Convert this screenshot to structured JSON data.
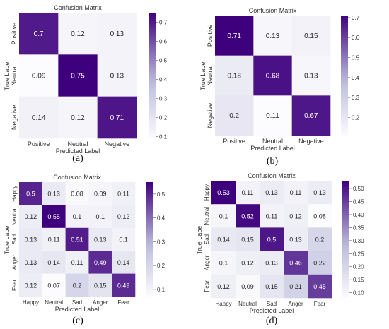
{
  "colors": {
    "low": "#fcfbfd",
    "mid": "#bcbddc",
    "high": "#3f007d"
  },
  "chart_data": [
    {
      "type": "heatmap",
      "title": "Confusion Matrix",
      "xlabel": "Predicted Label",
      "ylabel": "True Label",
      "x_categories": [
        "Positive",
        "Neutral",
        "Negative"
      ],
      "y_categories": [
        "Positive",
        "Neutral",
        "Negative"
      ],
      "values": [
        [
          0.7,
          0.12,
          0.13
        ],
        [
          0.09,
          0.75,
          0.13
        ],
        [
          0.14,
          0.12,
          0.71
        ]
      ],
      "colorbar_range": [
        0.09,
        0.75
      ],
      "colorbar_ticks": [
        "0.1",
        "0.2",
        "0.3",
        "0.4",
        "0.5",
        "0.6",
        "0.7"
      ],
      "caption": "(a)"
    },
    {
      "type": "heatmap",
      "title": "Confusion Matrix",
      "xlabel": "Predicted Label",
      "ylabel": "True Label",
      "x_categories": [
        "Positive",
        "Neutral",
        "Negative"
      ],
      "y_categories": [
        "Positive",
        "Neutral",
        "Negative"
      ],
      "values": [
        [
          0.71,
          0.13,
          0.15
        ],
        [
          0.18,
          0.68,
          0.13
        ],
        [
          0.2,
          0.11,
          0.67
        ]
      ],
      "colorbar_range": [
        0.11,
        0.71
      ],
      "colorbar_ticks": [
        "0.2",
        "0.3",
        "0.4",
        "0.5",
        "0.6",
        "0.7"
      ],
      "caption": "(b)"
    },
    {
      "type": "heatmap",
      "title": "Confusion Matrix",
      "xlabel": "Predicted Label",
      "ylabel": "True Label",
      "x_categories": [
        "Happy",
        "Neutral",
        "Sad",
        "Anger",
        "Fear"
      ],
      "y_categories": [
        "Happy",
        "Neutral",
        "Sad",
        "Anger",
        "Fear"
      ],
      "values": [
        [
          0.5,
          0.13,
          0.08,
          0.09,
          0.11
        ],
        [
          0.12,
          0.55,
          0.1,
          0.1,
          0.12
        ],
        [
          0.13,
          0.11,
          0.51,
          0.13,
          0.1
        ],
        [
          0.13,
          0.14,
          0.11,
          0.49,
          0.14
        ],
        [
          0.12,
          0.07,
          0.2,
          0.15,
          0.49
        ]
      ],
      "colorbar_range": [
        0.07,
        0.55
      ],
      "colorbar_ticks": [
        "0.1",
        "0.2",
        "0.3",
        "0.4",
        "0.5"
      ],
      "caption": "(c)"
    },
    {
      "type": "heatmap",
      "title": "Confusion Matrix",
      "xlabel": "Predicted Label",
      "ylabel": "True Label",
      "x_categories": [
        "Happy",
        "Neutral",
        "Sad",
        "Anger",
        "Fear"
      ],
      "y_categories": [
        "Happy",
        "Neutral",
        "Sad",
        "Anger",
        "Fear"
      ],
      "values": [
        [
          0.53,
          0.11,
          0.13,
          0.11,
          0.13
        ],
        [
          0.1,
          0.52,
          0.11,
          0.12,
          0.08
        ],
        [
          0.14,
          0.15,
          0.5,
          0.13,
          0.2
        ],
        [
          0.1,
          0.12,
          0.13,
          0.46,
          0.22
        ],
        [
          0.12,
          0.09,
          0.15,
          0.21,
          0.45
        ]
      ],
      "colorbar_range": [
        0.08,
        0.53
      ],
      "colorbar_ticks": [
        "0.10",
        "0.15",
        "0.20",
        "0.25",
        "0.30",
        "0.35",
        "0.40",
        "0.45",
        "0.50"
      ],
      "caption": "(d)"
    }
  ]
}
